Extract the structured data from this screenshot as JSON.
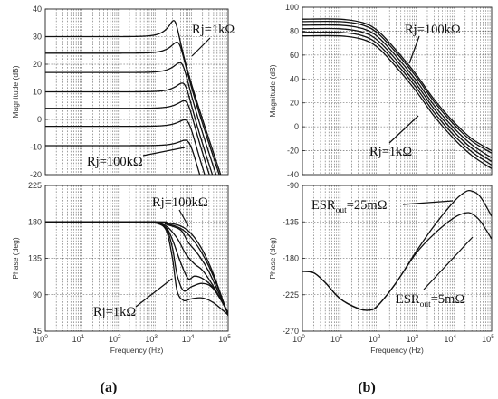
{
  "chart_data": [
    {
      "id": "a_mag",
      "type": "line",
      "title": "",
      "xlabel": "",
      "ylabel": "Magnitude (dB)",
      "xscale": "log",
      "xlim": [
        1,
        100000
      ],
      "ylim": [
        -20,
        40
      ],
      "yticks": [
        -20,
        -10,
        0,
        10,
        20,
        30,
        40
      ],
      "yticklabels": [
        "-20",
        "-10",
        "0",
        "10",
        "20",
        "30",
        "40"
      ],
      "xticklabels": [],
      "grid": true,
      "series": [
        {
          "dc": 30,
          "peak": 35.5,
          "f0": 3500
        },
        {
          "dc": 24,
          "peak": 27.5,
          "f0": 4500
        },
        {
          "dc": 17,
          "peak": 20,
          "f0": 5500
        },
        {
          "dc": 10,
          "peak": 12.5,
          "f0": 6500
        },
        {
          "dc": 4,
          "peak": 6,
          "f0": 7500
        },
        {
          "dc": -2.5,
          "peak": -1,
          "f0": 8000
        },
        {
          "dc": -9.5,
          "peak": -8.5,
          "f0": 8500
        }
      ],
      "annotations": [
        {
          "text": "Rj=1kΩ",
          "target": [
            5500,
            23
          ]
        },
        {
          "text": "Rj=100kΩ",
          "target": [
            7500,
            -8.5
          ]
        }
      ]
    },
    {
      "id": "a_phase",
      "type": "line",
      "title": "",
      "xlabel": "Frequency (Hz)",
      "ylabel": "Phase (deg)",
      "xscale": "log",
      "xlim": [
        1,
        100000
      ],
      "ylim": [
        45,
        225
      ],
      "yticks": [
        45,
        90,
        135,
        180,
        225
      ],
      "yticklabels": [
        "45",
        "90",
        "135",
        "180",
        "225"
      ],
      "xticklabels": [
        "10^0",
        "10^1",
        "10^2",
        "10^3",
        "10^4",
        "10^5"
      ],
      "grid": true,
      "series": [
        {
          "points": [
            [
              1,
              180
            ],
            [
              500,
              180
            ],
            [
              1000,
              179
            ],
            [
              2000,
              170
            ],
            [
              3000,
              135
            ],
            [
              4000,
              95
            ],
            [
              6000,
              83
            ],
            [
              10000,
              85
            ],
            [
              20000,
              86
            ],
            [
              40000,
              80
            ],
            [
              100000,
              65
            ]
          ]
        },
        {
          "points": [
            [
              1,
              180
            ],
            [
              500,
              180
            ],
            [
              1000,
              179
            ],
            [
              2000,
              172
            ],
            [
              3000,
              148
            ],
            [
              4000,
              115
            ],
            [
              6000,
              95
            ],
            [
              10000,
              100
            ],
            [
              20000,
              104
            ],
            [
              40000,
              97
            ],
            [
              100000,
              68
            ]
          ]
        },
        {
          "points": [
            [
              1,
              180
            ],
            [
              500,
              180
            ],
            [
              1000,
              179
            ],
            [
              2000,
              173
            ],
            [
              3000,
              158
            ],
            [
              5000,
              130
            ],
            [
              8000,
              110
            ],
            [
              12000,
              113
            ],
            [
              20000,
              110
            ],
            [
              40000,
              98
            ],
            [
              100000,
              68
            ]
          ]
        },
        {
          "points": [
            [
              1,
              180
            ],
            [
              500,
              180
            ],
            [
              1000,
              179
            ],
            [
              2000,
              175
            ],
            [
              4000,
              160
            ],
            [
              7000,
              140
            ],
            [
              12000,
              128
            ],
            [
              20000,
              120
            ],
            [
              40000,
              100
            ],
            [
              100000,
              67
            ]
          ]
        },
        {
          "points": [
            [
              1,
              180
            ],
            [
              1000,
              179.5
            ],
            [
              2000,
              177
            ],
            [
              5000,
              170
            ],
            [
              8000,
              155
            ],
            [
              15000,
              140
            ],
            [
              30000,
              118
            ],
            [
              100000,
              66
            ]
          ]
        },
        {
          "points": [
            [
              1,
              180
            ],
            [
              1000,
              180
            ],
            [
              2000,
              178
            ],
            [
              5000,
              172
            ],
            [
              10000,
              160
            ],
            [
              20000,
              140
            ],
            [
              40000,
              112
            ],
            [
              100000,
              65
            ]
          ]
        },
        {
          "points": [
            [
              1,
              180
            ],
            [
              1000,
              180
            ],
            [
              2000,
              179
            ],
            [
              5000,
              175
            ],
            [
              10000,
              165
            ],
            [
              20000,
              145
            ],
            [
              40000,
              115
            ],
            [
              100000,
              64
            ]
          ]
        }
      ],
      "annotations": [
        {
          "text": "Rj=100kΩ",
          "target": [
            6500,
            176
          ]
        },
        {
          "text": "Rj=1kΩ",
          "target": [
            5500,
            118
          ]
        }
      ]
    },
    {
      "id": "b_mag",
      "type": "line",
      "title": "",
      "xlabel": "",
      "ylabel": "Magnitude (dB)",
      "xscale": "log",
      "xlim": [
        1,
        100000
      ],
      "ylim": [
        -40,
        100
      ],
      "yticks": [
        -40,
        -20,
        0,
        20,
        40,
        60,
        80,
        100
      ],
      "yticklabels": [
        "-40",
        "-20",
        "0",
        "20",
        "40",
        "60",
        "80",
        "100"
      ],
      "xticklabels": [],
      "grid": true,
      "series": [
        {
          "points": [
            [
              1,
              90
            ],
            [
              10,
              90
            ],
            [
              40,
              87
            ],
            [
              100,
              80
            ],
            [
              300,
              64
            ],
            [
              1000,
              44
            ],
            [
              3000,
              23
            ],
            [
              10000,
              4
            ],
            [
              30000,
              -10
            ],
            [
              100000,
              -20
            ]
          ]
        },
        {
          "points": [
            [
              1,
              88
            ],
            [
              10,
              88
            ],
            [
              40,
              85
            ],
            [
              100,
              78
            ],
            [
              300,
              62
            ],
            [
              1000,
              42
            ],
            [
              3000,
              21
            ],
            [
              10000,
              2
            ],
            [
              30000,
              -12
            ],
            [
              100000,
              -22
            ]
          ]
        },
        {
          "points": [
            [
              1,
              85
            ],
            [
              10,
              85
            ],
            [
              40,
              82
            ],
            [
              100,
              75
            ],
            [
              300,
              59
            ],
            [
              1000,
              39
            ],
            [
              3000,
              18
            ],
            [
              10000,
              -1
            ],
            [
              30000,
              -15
            ],
            [
              100000,
              -26
            ]
          ]
        },
        {
          "points": [
            [
              1,
              82
            ],
            [
              10,
              82
            ],
            [
              40,
              79
            ],
            [
              100,
              72
            ],
            [
              300,
              56
            ],
            [
              1000,
              36
            ],
            [
              3000,
              15
            ],
            [
              10000,
              -4
            ],
            [
              30000,
              -18
            ],
            [
              100000,
              -29
            ]
          ]
        },
        {
          "points": [
            [
              1,
              79
            ],
            [
              10,
              79
            ],
            [
              40,
              76
            ],
            [
              100,
              69
            ],
            [
              300,
              53
            ],
            [
              1000,
              33
            ],
            [
              3000,
              12
            ],
            [
              10000,
              -7
            ],
            [
              30000,
              -21
            ],
            [
              100000,
              -32
            ]
          ]
        },
        {
          "points": [
            [
              1,
              76
            ],
            [
              10,
              76
            ],
            [
              40,
              73
            ],
            [
              100,
              66
            ],
            [
              300,
              50
            ],
            [
              1000,
              30
            ],
            [
              3000,
              9
            ],
            [
              10000,
              -10
            ],
            [
              30000,
              -24
            ],
            [
              100000,
              -35
            ]
          ]
        }
      ],
      "annotations": [
        {
          "text": "Rj=100kΩ",
          "target": [
            300,
            58
          ]
        },
        {
          "text": "Rj=1kΩ",
          "target": [
            2000,
            20
          ]
        }
      ]
    },
    {
      "id": "b_phase",
      "type": "line",
      "title": "",
      "xlabel": "Frequency (Hz)",
      "ylabel": "Phase (deg)",
      "xscale": "log",
      "xlim": [
        1,
        100000
      ],
      "ylim": [
        -270,
        -90
      ],
      "yticks": [
        -270,
        -225,
        -180,
        -135,
        -90
      ],
      "yticklabels": [
        "-270",
        "-225",
        "-180",
        "-135",
        "-90"
      ],
      "xticklabels": [
        "10^0",
        "10^1",
        "10^2",
        "10^3",
        "10^4",
        "10^5"
      ],
      "grid": true,
      "series": [
        {
          "name": "ESRout=25mΩ",
          "points": [
            [
              1,
              -196
            ],
            [
              2,
              -198
            ],
            [
              4,
              -210
            ],
            [
              10,
              -230
            ],
            [
              30,
              -242
            ],
            [
              60,
              -244
            ],
            [
              100,
              -238
            ],
            [
              300,
              -210
            ],
            [
              1000,
              -172
            ],
            [
              3000,
              -140
            ],
            [
              10000,
              -110
            ],
            [
              20000,
              -98
            ],
            [
              30000,
              -97
            ],
            [
              50000,
              -104
            ],
            [
              100000,
              -128
            ]
          ]
        },
        {
          "name": "ESRout=5mΩ",
          "points": [
            [
              1,
              -196
            ],
            [
              2,
              -198
            ],
            [
              4,
              -210
            ],
            [
              10,
              -230
            ],
            [
              30,
              -242
            ],
            [
              60,
              -244
            ],
            [
              100,
              -238
            ],
            [
              300,
              -210
            ],
            [
              1000,
              -174
            ],
            [
              3000,
              -150
            ],
            [
              10000,
              -130
            ],
            [
              20000,
              -124
            ],
            [
              30000,
              -125
            ],
            [
              50000,
              -134
            ],
            [
              100000,
              -156
            ]
          ]
        }
      ],
      "annotations": [
        {
          "text": "ESRout=25mΩ",
          "target": [
            15000,
            -105
          ]
        },
        {
          "text": "ESRout=5mΩ",
          "target": [
            40000,
            -140
          ]
        }
      ]
    }
  ],
  "panel_labels": {
    "a": "(a)",
    "b": "(b)"
  },
  "labels": {
    "a_mag_rj1k": "Rj=1kΩ",
    "a_mag_rj100k": "Rj=100kΩ",
    "a_phase_rj100k": "Rj=100kΩ",
    "a_phase_rj1k": "Rj=1kΩ",
    "b_mag_rj100k": "Rj=100kΩ",
    "b_mag_rj1k": "Rj=1kΩ",
    "b_phase_esr25_main": "ESR",
    "b_phase_esr25_sub": "out",
    "b_phase_esr25_tail": "=25mΩ",
    "b_phase_esr5_main": "ESR",
    "b_phase_esr5_sub": "out",
    "b_phase_esr5_tail": "=5mΩ"
  }
}
